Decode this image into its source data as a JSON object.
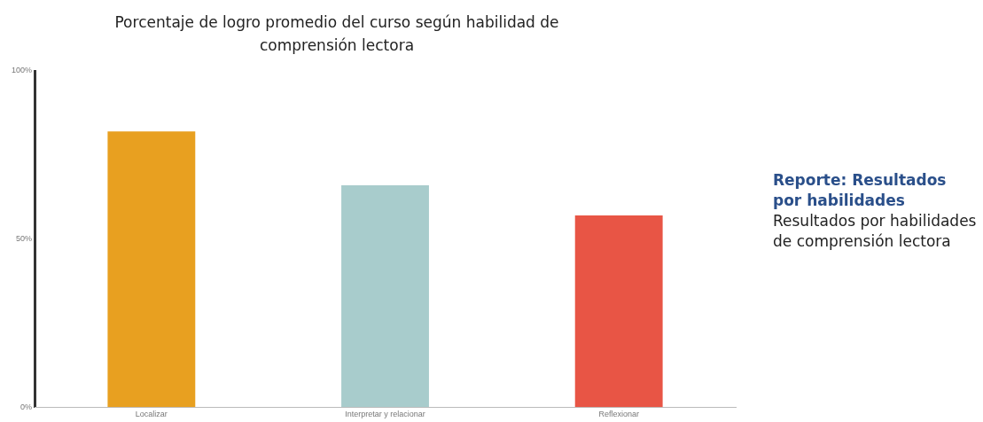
{
  "chart_data": {
    "type": "bar",
    "title": "Porcentaje de logro promedio del curso según habilidad de comprensión lectora",
    "categories": [
      "Localizar",
      "Interpretar y relacionar",
      "Reflexionar"
    ],
    "values": [
      82,
      66,
      57
    ],
    "colors": [
      "#e8a020",
      "#a8cccc",
      "#e85545"
    ],
    "ylim": [
      0,
      100
    ],
    "yticks": [
      {
        "value": 0,
        "label": "0%"
      },
      {
        "value": 50,
        "label": "50%"
      },
      {
        "value": 100,
        "label": "100%"
      }
    ],
    "grid": false,
    "legend": false,
    "annotations": [
      "Reporte: Resultados por habilidades",
      "Resultados por habilidades de comprensión lectora"
    ]
  }
}
